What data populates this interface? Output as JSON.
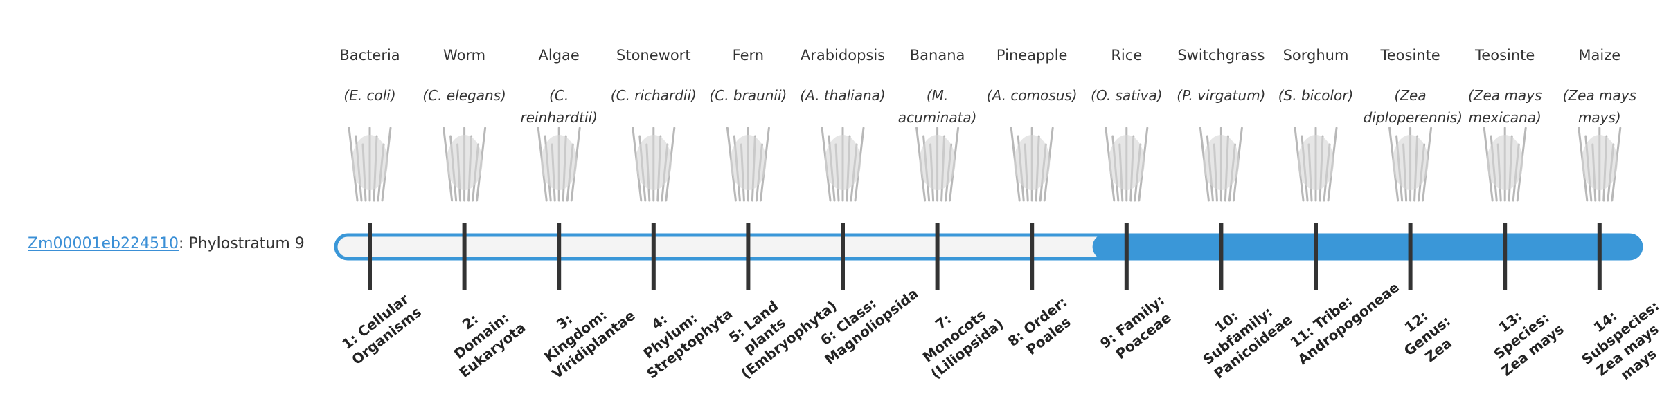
{
  "gene": {
    "id": "Zm00001eb224510",
    "suffix": ": Phylostratum 9"
  },
  "organisms": [
    {
      "name": "Bacteria",
      "species": "(E. coli)",
      "stratum": "1: Cellular Organisms"
    },
    {
      "name": "Worm",
      "species": "(C. elegans)",
      "stratum": "2: Domain: Eukaryota"
    },
    {
      "name": "Algae",
      "species": "(C. reinhardtii)",
      "stratum": "3: Kingdom: Viridiplantae"
    },
    {
      "name": "Stonewort",
      "species": "(C. richardii)",
      "stratum": "4: Phylum: Streptophyta"
    },
    {
      "name": "Fern",
      "species": "(C. braunii)",
      "stratum": "5: Land plants (Embryophyta)"
    },
    {
      "name": "Arabidopsis",
      "species": "(A. thaliana)",
      "stratum": "6: Class: Magnoliopsida"
    },
    {
      "name": "Banana",
      "species": "(M. acuminata)",
      "stratum": "7: Monocots (Liliopsida)"
    },
    {
      "name": "Pineapple",
      "species": "(A. comosus)",
      "stratum": "8: Order: Poales"
    },
    {
      "name": "Rice",
      "species": "(O. sativa)",
      "stratum": "9: Family: Poaceae"
    },
    {
      "name": "Switchgrass",
      "species": "(P. virgatum)",
      "stratum": "10: Subfamily: Panicoideae"
    },
    {
      "name": "Sorghum",
      "species": "(S. bicolor)",
      "stratum": "11: Tribe: Andropogoneae"
    },
    {
      "name": "Teosinte",
      "species": "(Zea diploperennis)",
      "stratum": "12: Genus: Zea"
    },
    {
      "name": "Teosinte",
      "species": "(Zea mays mexicana)",
      "stratum": "13: Species: Zea mays"
    },
    {
      "name": "Maize",
      "species": "(Zea mays mays)",
      "stratum": "14: Subspecies: Zea mays mays"
    }
  ]
}
